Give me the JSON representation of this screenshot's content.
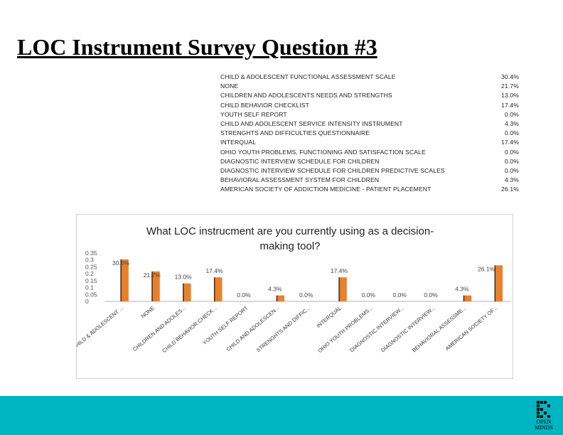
{
  "slide": {
    "title": "LOC Instrument Survey Question #3",
    "logo_text": "OPEN MINDS"
  },
  "table": {
    "rows": [
      {
        "label": "CHILD & ADOLESCENT FUNCTIONAL ASSESSMENT SCALE",
        "pct": "30.4%"
      },
      {
        "label": "NONE",
        "pct": "21.7%"
      },
      {
        "label": "CHILDREN AND ADOLESCENTS NEEDS AND STRENGTHS",
        "pct": "13.0%"
      },
      {
        "label": "CHILD BEHAVIOR CHECKLIST",
        "pct": "17.4%"
      },
      {
        "label": "YOUTH SELF REPORT",
        "pct": "0.0%"
      },
      {
        "label": "CHILD AND ADOLESCENT SERVICE INTENSITY INSTRUMENT",
        "pct": "4.3%"
      },
      {
        "label": "STRENGHTS AND DIFFICULTIES QUESTIONNAIRE",
        "pct": "0.0%"
      },
      {
        "label": "INTERQUAL",
        "pct": "17.4%"
      },
      {
        "label": "OHIO YOUTH PROBLEMS, FUNCTIONING AND SATISFACTION SCALE",
        "pct": "0.0%"
      },
      {
        "label": "DIAGNOSTIC INTERVIEW SCHEDULE FOR CHILDREN",
        "pct": "0.0%"
      },
      {
        "label": "DIAGNOSTIC INTERVIEW SCHEDULE FOR CHILDREN PREDICTIVE SCALES",
        "pct": "0.0%"
      },
      {
        "label": "BEHAVIORAL ASSESSMENT SYSTEM FOR CHILDREN",
        "pct": "4.3%"
      },
      {
        "label": "AMERICAN SOCIETY OF ADDICTION MEDICINE - PATIENT PLACEMENT",
        "pct": "26.1%"
      }
    ]
  },
  "chart_data": {
    "type": "bar",
    "title_lines": [
      "What LOC instrucment are you currently using as a decision-",
      "making tool?"
    ],
    "categories": [
      "CHILD & ADOLESCENT ...",
      "NONE",
      "CHILDREN AND ADOLES...",
      "CHILD BEHAVIOR CHECK...",
      "YOUTH SELF REPORT",
      "CHILD AND ADOLESCEN...",
      "STRENGHTS AND DIFFIC...",
      "INTERQUAL",
      "OHIO YOUTH PROBLEMS...",
      "DIAGNOSTIC INTERVIEW...",
      "DIAGNOSTIC INTERVIEW...",
      "BEHAVIORAL ASSESSME...",
      "AMERICAN SOCIETY OF..."
    ],
    "values": [
      0.304,
      0.217,
      0.13,
      0.174,
      0.0,
      0.043,
      0.0,
      0.174,
      0.0,
      0.0,
      0.0,
      0.043,
      0.261
    ],
    "data_labels": [
      "30.4%",
      "21.7%",
      "13.0%",
      "17.4%",
      "0.0%",
      "4.3%",
      "0.0%",
      "17.4%",
      "0.0%",
      "0.0%",
      "0.0%",
      "4.3%",
      "26.1%"
    ],
    "y_ticks": [
      "0.35",
      "0.3",
      "0.25",
      "0.2",
      "0.15",
      "0.1",
      "0.05",
      "0"
    ],
    "ylim": [
      0,
      0.35
    ],
    "bar_color": "#e8812c",
    "grid": false,
    "legend": "none"
  }
}
